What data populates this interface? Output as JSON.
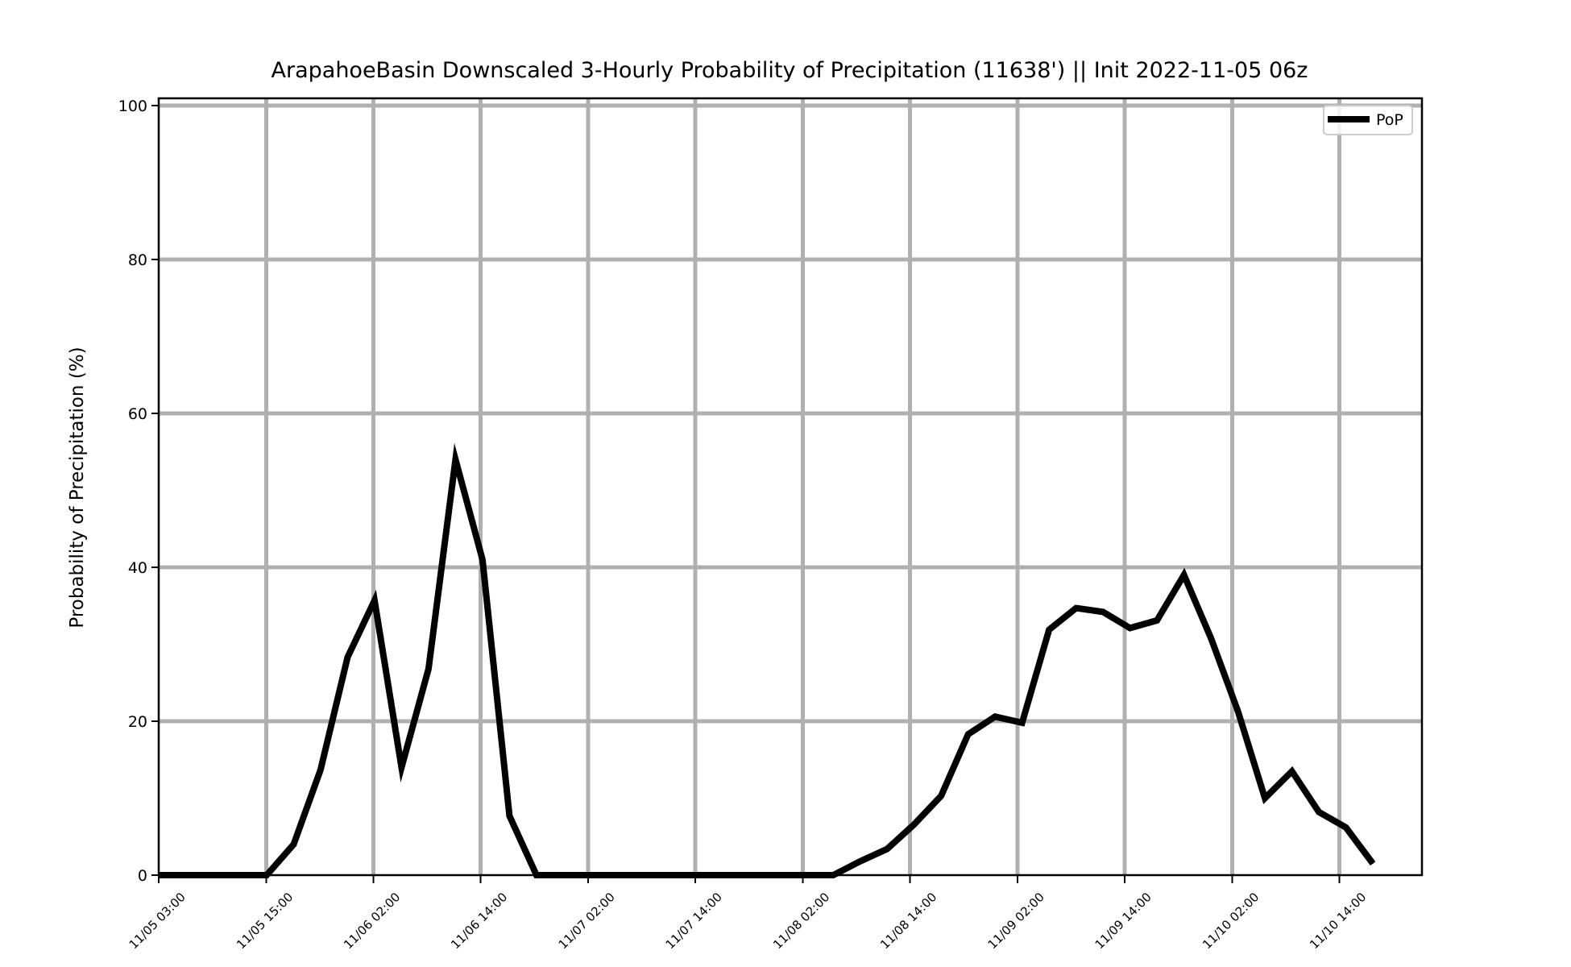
{
  "chart_data": {
    "type": "line",
    "title": "ArapahoeBasin Downscaled 3-Hourly Probability of Precipitation (11638') || Init 2022-11-05 06z",
    "xlabel": "",
    "ylabel": "Probability of Precipitation (%)",
    "ylim": [
      0,
      100
    ],
    "yticks": [
      "0",
      "20",
      "40",
      "60",
      "80",
      "100"
    ],
    "xticks": [
      "11/05 03:00",
      "11/05 15:00",
      "11/06 02:00",
      "11/06 14:00",
      "11/07 02:00",
      "11/07 14:00",
      "11/08 02:00",
      "11/08 14:00",
      "11/09 02:00",
      "11/09 14:00",
      "11/10 02:00",
      "11/10 14:00"
    ],
    "grid": true,
    "legend_position": "top-right",
    "line_color": "#000000",
    "grid_color": "#b0b0b0",
    "series": [
      {
        "name": "PoP",
        "values": [
          0,
          0,
          0,
          0,
          0,
          4,
          13.7,
          28.3,
          35.7,
          14,
          26.8,
          54,
          41,
          7.7,
          0,
          0,
          0,
          0,
          0,
          0,
          0,
          0,
          0,
          0,
          0,
          0,
          1.8,
          3.4,
          6.6,
          10.3,
          18.3,
          20.6,
          19.8,
          31.9,
          34.7,
          34.2,
          32.1,
          33.1,
          39,
          30.8,
          21.3,
          10,
          13.5,
          8.2,
          6.2,
          1.5
        ]
      }
    ]
  }
}
